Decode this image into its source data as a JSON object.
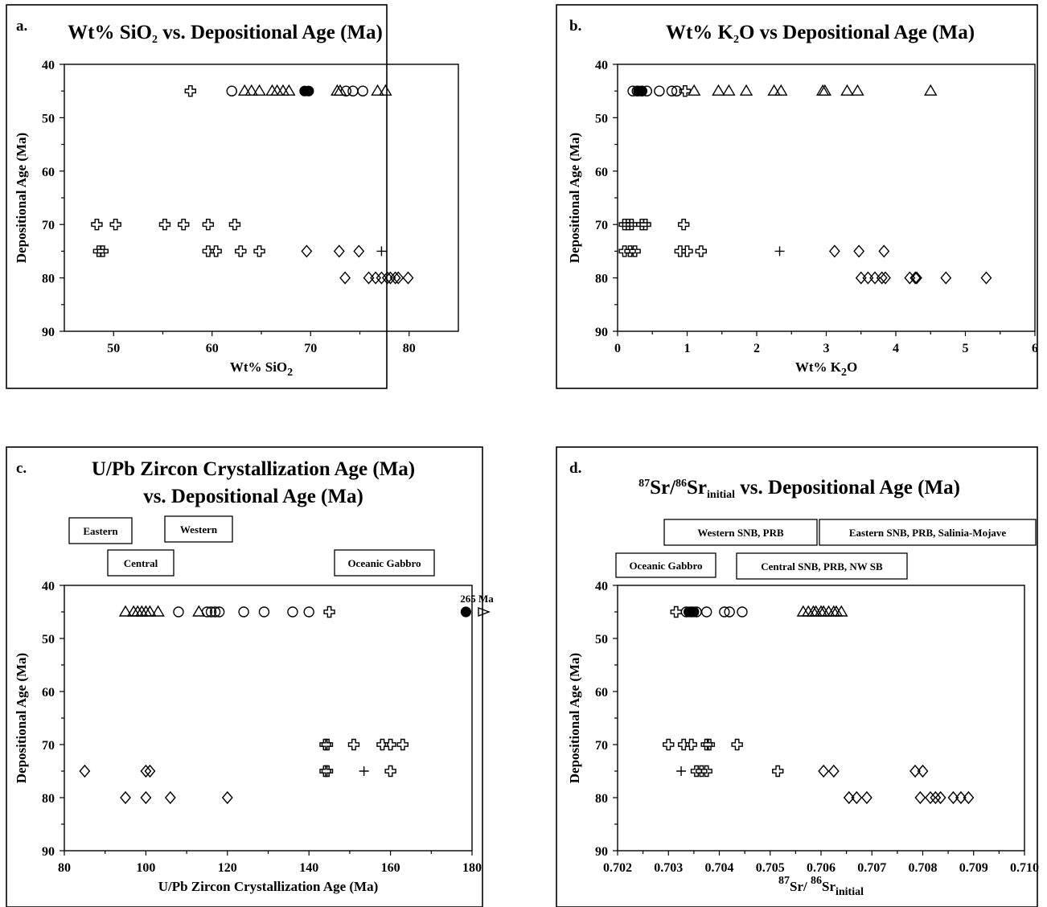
{
  "chart_data": [
    {
      "type": "scatter",
      "panel_label": "a.",
      "title_parts": [
        {
          "t": "Wt% SiO",
          "s": "n"
        },
        {
          "t": "2",
          "s": "sub"
        },
        {
          "t": " vs. Depositional Age (Ma)",
          "s": "n"
        }
      ],
      "xlabel_parts": [
        {
          "t": "Wt% SiO",
          "s": "n"
        },
        {
          "t": "2",
          "s": "sub"
        }
      ],
      "ylabel": "Depositional Age (Ma)",
      "xlim": [
        45,
        85
      ],
      "ylim": [
        40,
        90
      ],
      "y_inverted": true,
      "xticks": [
        50,
        60,
        70,
        80
      ],
      "yticks": [
        40,
        50,
        60,
        70,
        80,
        90
      ],
      "series": [
        {
          "marker": "cross",
          "points": [
            [
              57.8,
              45
            ],
            [
              48.3,
              70
            ],
            [
              50.2,
              70
            ],
            [
              55.2,
              70
            ],
            [
              57.1,
              70
            ],
            [
              59.6,
              70
            ],
            [
              62.3,
              70
            ],
            [
              48.5,
              75
            ],
            [
              48.9,
              75
            ],
            [
              59.6,
              75
            ],
            [
              60.4,
              75
            ],
            [
              62.9,
              75
            ],
            [
              64.8,
              75
            ]
          ]
        },
        {
          "marker": "plus",
          "points": [
            [
              77.2,
              75
            ]
          ]
        },
        {
          "marker": "circle",
          "points": [
            [
              62.0,
              45
            ],
            [
              73.6,
              45
            ],
            [
              74.3,
              45
            ],
            [
              75.3,
              45
            ]
          ]
        },
        {
          "marker": "filled-circle",
          "points": [
            [
              69.4,
              45
            ],
            [
              69.8,
              45
            ]
          ]
        },
        {
          "marker": "triangle",
          "points": [
            [
              63.3,
              45
            ],
            [
              64.0,
              45
            ],
            [
              64.8,
              45
            ],
            [
              66.1,
              45
            ],
            [
              66.6,
              45
            ],
            [
              67.2,
              45
            ],
            [
              67.8,
              45
            ],
            [
              72.7,
              45
            ],
            [
              73.0,
              45
            ],
            [
              76.8,
              45
            ],
            [
              77.6,
              45
            ]
          ]
        },
        {
          "marker": "diamond",
          "points": [
            [
              69.6,
              75
            ],
            [
              72.9,
              75
            ],
            [
              74.9,
              75
            ],
            [
              73.5,
              80
            ],
            [
              75.9,
              80
            ],
            [
              76.6,
              80
            ],
            [
              77.2,
              80
            ],
            [
              77.8,
              80
            ],
            [
              78.1,
              80
            ],
            [
              78.6,
              80
            ],
            [
              78.9,
              80
            ],
            [
              79.9,
              80
            ]
          ]
        }
      ]
    },
    {
      "type": "scatter",
      "panel_label": "b.",
      "title_parts": [
        {
          "t": "Wt% K",
          "s": "n"
        },
        {
          "t": "2",
          "s": "sub"
        },
        {
          "t": "O vs Depositional Age (Ma)",
          "s": "n"
        }
      ],
      "xlabel_parts": [
        {
          "t": "Wt% K",
          "s": "n"
        },
        {
          "t": "2",
          "s": "sub"
        },
        {
          "t": "O",
          "s": "n"
        }
      ],
      "ylabel": "Depositional Age (Ma)",
      "xlim": [
        0,
        6
      ],
      "ylim": [
        40,
        90
      ],
      "y_inverted": true,
      "xticks": [
        0,
        1,
        2,
        3,
        4,
        5,
        6
      ],
      "yticks": [
        40,
        50,
        60,
        70,
        80,
        90
      ],
      "series": [
        {
          "marker": "cross",
          "points": [
            [
              0.97,
              45
            ],
            [
              0.1,
              70
            ],
            [
              0.15,
              70
            ],
            [
              0.2,
              70
            ],
            [
              0.35,
              70
            ],
            [
              0.4,
              70
            ],
            [
              0.95,
              70
            ],
            [
              0.1,
              75
            ],
            [
              0.18,
              75
            ],
            [
              0.25,
              75
            ],
            [
              0.9,
              75
            ],
            [
              1.0,
              75
            ],
            [
              1.2,
              75
            ]
          ]
        },
        {
          "marker": "plus",
          "points": [
            [
              2.33,
              75
            ]
          ]
        },
        {
          "marker": "circle",
          "points": [
            [
              0.22,
              45
            ],
            [
              0.28,
              45
            ],
            [
              0.35,
              45
            ],
            [
              0.42,
              45
            ],
            [
              0.6,
              45
            ],
            [
              0.78,
              45
            ],
            [
              0.85,
              45
            ]
          ]
        },
        {
          "marker": "filled-circle",
          "points": [
            [
              0.3,
              45
            ],
            [
              0.35,
              45
            ]
          ]
        },
        {
          "marker": "triangle",
          "points": [
            [
              1.1,
              45
            ],
            [
              1.45,
              45
            ],
            [
              1.6,
              45
            ],
            [
              1.85,
              45
            ],
            [
              2.25,
              45
            ],
            [
              2.35,
              45
            ],
            [
              2.95,
              45
            ],
            [
              2.98,
              45
            ],
            [
              3.3,
              45
            ],
            [
              3.45,
              45
            ],
            [
              4.5,
              45
            ]
          ]
        },
        {
          "marker": "diamond",
          "points": [
            [
              3.12,
              75
            ],
            [
              3.47,
              75
            ],
            [
              3.83,
              75
            ],
            [
              3.5,
              80
            ],
            [
              3.6,
              80
            ],
            [
              3.7,
              80
            ],
            [
              3.8,
              80
            ],
            [
              3.85,
              80
            ],
            [
              4.2,
              80
            ],
            [
              4.28,
              80
            ],
            [
              4.3,
              80
            ],
            [
              4.72,
              80
            ],
            [
              5.3,
              80
            ]
          ]
        }
      ]
    },
    {
      "type": "scatter",
      "panel_label": "c.",
      "title_lines": [
        "U/Pb Zircon Crystallization Age (Ma)",
        "vs. Depositional Age (Ma)"
      ],
      "xlabel": "U/Pb Zircon Crystallization Age (Ma)",
      "ylabel": "Depositional Age (Ma)",
      "xlim": [
        80,
        180
      ],
      "ylim": [
        40,
        90
      ],
      "y_inverted": true,
      "xticks": [
        80,
        100,
        120,
        140,
        160,
        180
      ],
      "yticks": [
        40,
        50,
        60,
        70,
        80,
        90
      ],
      "legend": [
        "Eastern",
        "Western",
        "Central",
        "Oceanic Gabbro"
      ],
      "annotation": "265 Ma",
      "series": [
        {
          "marker": "cross",
          "points": [
            [
              145,
              45
            ],
            [
              144,
              70
            ],
            [
              144.5,
              70
            ],
            [
              151,
              70
            ],
            [
              158,
              70
            ],
            [
              160,
              70
            ],
            [
              163,
              70
            ],
            [
              144,
              75
            ],
            [
              144.5,
              75
            ],
            [
              160,
              75
            ]
          ]
        },
        {
          "marker": "plus",
          "points": [
            [
              153.5,
              75
            ]
          ]
        },
        {
          "marker": "circle",
          "points": [
            [
              108,
              45
            ],
            [
              115,
              45
            ],
            [
              116,
              45
            ],
            [
              117,
              45
            ],
            [
              118,
              45
            ],
            [
              124,
              45
            ],
            [
              129,
              45
            ],
            [
              136,
              45
            ],
            [
              140,
              45
            ]
          ]
        },
        {
          "marker": "filled-circle",
          "points": [
            [
              178.5,
              45
            ]
          ]
        },
        {
          "marker": "triangle",
          "points": [
            [
              95,
              45
            ],
            [
              97,
              45
            ],
            [
              98,
              45
            ],
            [
              99,
              45
            ],
            [
              100,
              45
            ],
            [
              101,
              45
            ],
            [
              103,
              45
            ],
            [
              113,
              45
            ]
          ]
        },
        {
          "marker": "triangle-right",
          "points": [
            [
              184,
              45
            ]
          ]
        },
        {
          "marker": "diamond",
          "points": [
            [
              85,
              75
            ],
            [
              100,
              75
            ],
            [
              101,
              75
            ],
            [
              95,
              80
            ],
            [
              100,
              80
            ],
            [
              106,
              80
            ],
            [
              120,
              80
            ]
          ]
        }
      ]
    },
    {
      "type": "scatter",
      "panel_label": "d.",
      "title_parts": [
        {
          "t": "87",
          "s": "sup"
        },
        {
          "t": "Sr/",
          "s": "n"
        },
        {
          "t": "86",
          "s": "sup"
        },
        {
          "t": "Sr",
          "s": "n"
        },
        {
          "t": "initial",
          "s": "sub"
        },
        {
          "t": " vs. Depositional Age (Ma)",
          "s": "n"
        }
      ],
      "xlabel_parts": [
        {
          "t": "87",
          "s": "sup"
        },
        {
          "t": "Sr/ ",
          "s": "n"
        },
        {
          "t": "86",
          "s": "sup"
        },
        {
          "t": "Sr",
          "s": "n"
        },
        {
          "t": "initial",
          "s": "sub"
        }
      ],
      "ylabel": "Depositional Age (Ma)",
      "xlim": [
        0.702,
        0.71
      ],
      "ylim": [
        40,
        90
      ],
      "y_inverted": true,
      "xticks": [
        "0.702",
        "0.703",
        "0.704",
        "0.705",
        "0.706",
        "0.707",
        "0.708",
        "0.709",
        "0.710"
      ],
      "yticks": [
        40,
        50,
        60,
        70,
        80,
        90
      ],
      "legend": [
        "Western SNB, PRB",
        "Eastern SNB, PRB, Salinia-Mojave",
        "Oceanic Gabbro",
        "Central SNB, PRB, NW SB"
      ],
      "series": [
        {
          "marker": "cross",
          "points": [
            [
              0.70315,
              45
            ],
            [
              0.703,
              70
            ],
            [
              0.7033,
              70
            ],
            [
              0.70345,
              70
            ],
            [
              0.70375,
              70
            ],
            [
              0.7038,
              70
            ],
            [
              0.70435,
              70
            ],
            [
              0.70355,
              75
            ],
            [
              0.70365,
              75
            ],
            [
              0.70375,
              75
            ],
            [
              0.70515,
              75
            ]
          ]
        },
        {
          "marker": "plus",
          "points": [
            [
              0.70325,
              75
            ]
          ]
        },
        {
          "marker": "circle",
          "points": [
            [
              0.70335,
              45
            ],
            [
              0.70345,
              45
            ],
            [
              0.70355,
              45
            ],
            [
              0.70375,
              45
            ],
            [
              0.7041,
              45
            ],
            [
              0.7042,
              45
            ],
            [
              0.70445,
              45
            ]
          ]
        },
        {
          "marker": "filled-circle",
          "points": [
            [
              0.7034,
              45
            ],
            [
              0.7035,
              45
            ]
          ]
        },
        {
          "marker": "triangle",
          "points": [
            [
              0.70565,
              45
            ],
            [
              0.70575,
              45
            ],
            [
              0.70585,
              45
            ],
            [
              0.7059,
              45
            ],
            [
              0.706,
              45
            ],
            [
              0.70605,
              45
            ],
            [
              0.70615,
              45
            ],
            [
              0.70625,
              45
            ],
            [
              0.7063,
              45
            ],
            [
              0.7064,
              45
            ]
          ]
        },
        {
          "marker": "diamond",
          "points": [
            [
              0.70605,
              75
            ],
            [
              0.70625,
              75
            ],
            [
              0.70785,
              75
            ],
            [
              0.708,
              75
            ],
            [
              0.70655,
              80
            ],
            [
              0.7067,
              80
            ],
            [
              0.7069,
              80
            ],
            [
              0.70795,
              80
            ],
            [
              0.70815,
              80
            ],
            [
              0.70825,
              80
            ],
            [
              0.70835,
              80
            ],
            [
              0.7086,
              80
            ],
            [
              0.70875,
              80
            ],
            [
              0.7089,
              80
            ]
          ]
        }
      ]
    }
  ]
}
